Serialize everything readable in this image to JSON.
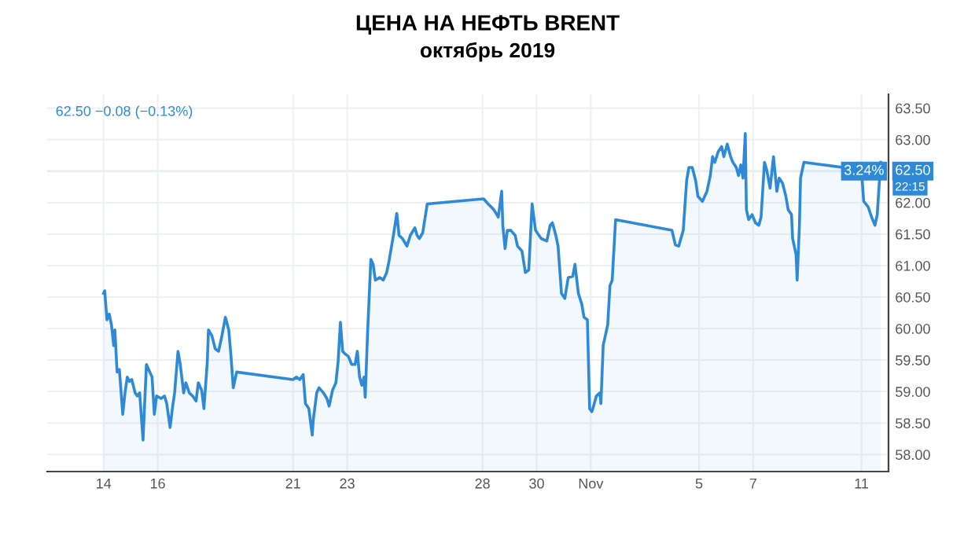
{
  "chart_data": {
    "type": "area",
    "title": "ЦЕНА НА НЕФТЬ BRENT",
    "subtitle": "октябрь 2019",
    "annotations": [
      "62.50 −0.08 (−0.13%)",
      "3.24%",
      "22:15"
    ],
    "series": [
      {
        "color": "#2e8ad6",
        "x": [
          "2019-10-14T00:00",
          "2019-10-14T01:00",
          "2019-10-14T03:00",
          "2019-10-14T05:00",
          "2019-10-14T07:00",
          "2019-10-14T09:00",
          "2019-10-14T10:00",
          "2019-10-14T12:00",
          "2019-10-14T14:00",
          "2019-10-14T17:00",
          "2019-10-14T19:00",
          "2019-10-14T21:00",
          "2019-10-14T23:00",
          "2019-10-15T01:00",
          "2019-10-15T04:00",
          "2019-10-15T06:00",
          "2019-10-15T08:00",
          "2019-10-15T11:00",
          "2019-10-15T12:00",
          "2019-10-15T14:00",
          "2019-10-15T17:00",
          "2019-10-15T19:00",
          "2019-10-15T21:00",
          "2019-10-15T23:00",
          "2019-10-16T03:00",
          "2019-10-16T06:00",
          "2019-10-16T08:00",
          "2019-10-16T11:00",
          "2019-10-16T13:00",
          "2019-10-16T15:00",
          "2019-10-16T18:00",
          "2019-10-16T20:00",
          "2019-10-16T23:00",
          "2019-10-17T01:00",
          "2019-10-17T04:00",
          "2019-10-17T07:00",
          "2019-10-17T10:00",
          "2019-10-17T12:00",
          "2019-10-17T15:00",
          "2019-10-17T17:00",
          "2019-10-17T20:00",
          "2019-10-17T21:00",
          "2019-10-18T00:00",
          "2019-10-18T03:00",
          "2019-10-18T06:00",
          "2019-10-18T09:00",
          "2019-10-18T12:00",
          "2019-10-18T15:00",
          "2019-10-18T17:00",
          "2019-10-18T19:00",
          "2019-10-18T22:00",
          "2019-10-21T00:00",
          "2019-10-21T03:00",
          "2019-10-21T06:00",
          "2019-10-21T09:00",
          "2019-10-21T11:00",
          "2019-10-21T14:00",
          "2019-10-21T17:00",
          "2019-10-21T18:00",
          "2019-10-21T21:00",
          "2019-10-21T23:00",
          "2019-10-22T03:00",
          "2019-10-22T06:00",
          "2019-10-22T08:00",
          "2019-10-22T11:00",
          "2019-10-22T14:00",
          "2019-10-22T16:00",
          "2019-10-22T18:00",
          "2019-10-22T20:00",
          "2019-10-22T22:00",
          "2019-10-23T01:00",
          "2019-10-23T04:00",
          "2019-10-23T07:00",
          "2019-10-23T09:00",
          "2019-10-23T11:00",
          "2019-10-23T13:00",
          "2019-10-23T15:00",
          "2019-10-23T16:00",
          "2019-10-23T18:00",
          "2019-10-23T21:00",
          "2019-10-23T23:00",
          "2019-10-24T01:00",
          "2019-10-24T05:00",
          "2019-10-24T08:00",
          "2019-10-24T11:00",
          "2019-10-24T13:00",
          "2019-10-24T17:00",
          "2019-10-24T20:00",
          "2019-10-24T22:00",
          "2019-10-25T01:00",
          "2019-10-25T05:00",
          "2019-10-25T08:00",
          "2019-10-25T12:00",
          "2019-10-25T14:00",
          "2019-10-25T16:00",
          "2019-10-25T19:00",
          "2019-10-25T23:00",
          "2019-10-28T01:00",
          "2019-10-28T05:00",
          "2019-10-28T10:00",
          "2019-10-28T14:00",
          "2019-10-28T17:00",
          "2019-10-28T18:00",
          "2019-10-28T20:00",
          "2019-10-28T22:00",
          "2019-10-29T01:00",
          "2019-10-29T05:00",
          "2019-10-29T07:00",
          "2019-10-29T11:00",
          "2019-10-29T14:00",
          "2019-10-29T17:00",
          "2019-10-29T20:00",
          "2019-10-29T23:00",
          "2019-10-30T04:00",
          "2019-10-30T09:00",
          "2019-10-30T12:00",
          "2019-10-30T14:00",
          "2019-10-30T17:00",
          "2019-10-30T19:00",
          "2019-10-30T22:00",
          "2019-10-31T01:00",
          "2019-10-31T04:00",
          "2019-10-31T08:00",
          "2019-10-31T10:00",
          "2019-10-31T13:00",
          "2019-10-31T16:00",
          "2019-10-31T18:00",
          "2019-10-31T21:00",
          "2019-10-31T23:00",
          "2019-11-01T01:00",
          "2019-11-01T05:00",
          "2019-11-01T08:00",
          "2019-11-01T09:00",
          "2019-11-01T11:00",
          "2019-11-01T15:00",
          "2019-11-01T17:00",
          "2019-11-01T19:00",
          "2019-11-01T22:00",
          "2019-11-04T00:00",
          "2019-11-04T03:00",
          "2019-11-04T06:00",
          "2019-11-04T10:00",
          "2019-11-04T13:00",
          "2019-11-04T15:00",
          "2019-11-04T18:00",
          "2019-11-04T21:00",
          "2019-11-04T23:00",
          "2019-11-05T03:00",
          "2019-11-05T07:00",
          "2019-11-05T10:00",
          "2019-11-05T12:00",
          "2019-11-05T14:00",
          "2019-11-05T17:00",
          "2019-11-05T20:00",
          "2019-11-05T22:00",
          "2019-11-06T01:00",
          "2019-11-06T04:00",
          "2019-11-06T06:00",
          "2019-11-06T09:00",
          "2019-11-06T11:00",
          "2019-11-06T13:00",
          "2019-11-06T15:00",
          "2019-11-06T17:00",
          "2019-11-06T18:00",
          "2019-11-06T20:00",
          "2019-11-06T23:00",
          "2019-11-07T02:00",
          "2019-11-07T05:00",
          "2019-11-07T07:00",
          "2019-11-07T10:00",
          "2019-11-07T12:00",
          "2019-11-07T15:00",
          "2019-11-07T18:00",
          "2019-11-07T21:00",
          "2019-11-07T23:00",
          "2019-11-08T02:00",
          "2019-11-08T05:00",
          "2019-11-08T07:00",
          "2019-11-08T10:00",
          "2019-11-08T11:00",
          "2019-11-08T14:00",
          "2019-11-08T15:00",
          "2019-11-08T17:00",
          "2019-11-08T18:00",
          "2019-11-08T21:00",
          "2019-11-11T00:00",
          "2019-11-11T02:00",
          "2019-11-11T06:00",
          "2019-11-11T09:00",
          "2019-11-11T12:00",
          "2019-11-11T14:00",
          "2019-11-11T17:00"
        ],
        "values": [
          60.56,
          60.6,
          60.14,
          60.23,
          60.06,
          59.73,
          59.98,
          59.31,
          59.35,
          58.64,
          58.98,
          59.23,
          59.16,
          59.19,
          58.98,
          58.93,
          58.98,
          58.23,
          58.64,
          59.43,
          59.31,
          59.23,
          58.64,
          58.93,
          58.89,
          58.93,
          58.81,
          58.43,
          58.73,
          58.98,
          59.64,
          59.43,
          58.98,
          59.14,
          58.98,
          58.93,
          58.85,
          59.14,
          59.02,
          58.73,
          59.48,
          59.98,
          59.89,
          59.68,
          59.64,
          59.89,
          60.18,
          59.98,
          59.56,
          59.06,
          59.31,
          59.19,
          59.23,
          59.19,
          59.27,
          58.81,
          58.73,
          58.31,
          58.56,
          58.98,
          59.06,
          58.98,
          58.89,
          58.77,
          59.02,
          59.14,
          59.48,
          60.1,
          59.64,
          59.6,
          59.56,
          59.43,
          59.43,
          59.64,
          59.23,
          59.1,
          59.23,
          58.91,
          59.89,
          61.1,
          61.02,
          60.77,
          60.81,
          60.77,
          60.89,
          61.06,
          61.48,
          61.83,
          61.48,
          61.43,
          61.31,
          61.48,
          61.6,
          61.48,
          61.43,
          61.52,
          61.98,
          62.06,
          61.98,
          61.89,
          61.77,
          62.18,
          61.64,
          61.27,
          61.56,
          61.56,
          61.48,
          61.31,
          61.23,
          60.89,
          60.93,
          61.98,
          61.56,
          61.43,
          61.39,
          61.64,
          61.68,
          61.48,
          61.31,
          60.56,
          60.48,
          60.81,
          60.83,
          61.02,
          60.56,
          60.39,
          60.18,
          60.14,
          58.73,
          58.68,
          58.93,
          58.98,
          58.81,
          59.73,
          60.06,
          60.68,
          60.77,
          61.73,
          61.56,
          61.33,
          61.31,
          61.56,
          62.35,
          62.56,
          62.56,
          62.35,
          62.1,
          62.02,
          62.18,
          62.43,
          62.73,
          62.64,
          62.81,
          62.89,
          62.73,
          62.93,
          62.73,
          62.64,
          62.56,
          62.43,
          62.6,
          62.39,
          63.1,
          61.89,
          61.73,
          61.81,
          61.68,
          61.64,
          61.77,
          62.64,
          62.52,
          62.23,
          62.73,
          62.18,
          62.39,
          62.31,
          62.1,
          61.89,
          61.81,
          61.43,
          61.18,
          60.77,
          61.64,
          62.39,
          62.64,
          62.52,
          62.02,
          61.93,
          61.77,
          61.64,
          61.81,
          62.64
        ]
      }
    ],
    "xlim": [
      "2019-10-11T22:00",
      "2019-11-12T00:00"
    ],
    "xticks": [
      {
        "value": "2019-10-14",
        "label": "14"
      },
      {
        "value": "2019-10-16",
        "label": "16"
      },
      {
        "value": "2019-10-21",
        "label": "21"
      },
      {
        "value": "2019-10-23",
        "label": "23"
      },
      {
        "value": "2019-10-28",
        "label": "28"
      },
      {
        "value": "2019-10-30",
        "label": "30"
      },
      {
        "value": "2019-11-01",
        "label": "Nov"
      },
      {
        "value": "2019-11-05",
        "label": "5"
      },
      {
        "value": "2019-11-07",
        "label": "7"
      },
      {
        "value": "2019-11-11",
        "label": "11"
      }
    ],
    "ylim": [
      57.73,
      63.72
    ],
    "yticks": [
      {
        "value": 58,
        "label": "58.00"
      },
      {
        "value": 58.5,
        "label": "58.50"
      },
      {
        "value": 59,
        "label": "59.00"
      },
      {
        "value": 59.5,
        "label": "59.50"
      },
      {
        "value": 60,
        "label": "60.00"
      },
      {
        "value": 60.5,
        "label": "60.50"
      },
      {
        "value": 61,
        "label": "61.00"
      },
      {
        "value": 61.5,
        "label": "61.50"
      },
      {
        "value": 62,
        "label": "62.00"
      },
      {
        "value": 62.5,
        "label": "62.50"
      },
      {
        "value": 63,
        "label": "63.00"
      },
      {
        "value": 63.5,
        "label": "63.50"
      }
    ],
    "ref_lines": [
      {
        "axis": "y",
        "value": 62.5,
        "label": "62.50",
        "color": "#9fd3e3"
      }
    ],
    "grid": true
  }
}
